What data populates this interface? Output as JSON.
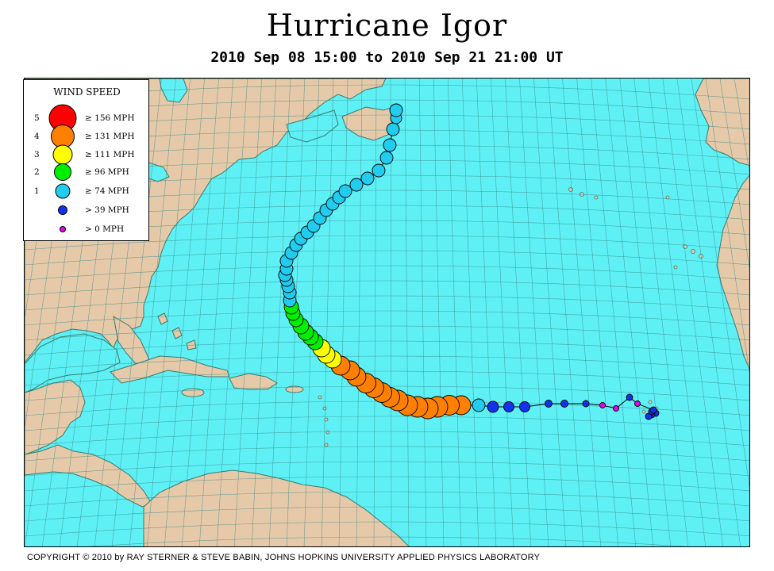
{
  "title": "Hurricane Igor",
  "subtitle": "2010 Sep 08 15:00 to 2010 Sep 21 21:00 UT",
  "legend": {
    "title": "WIND SPEED",
    "entries": [
      {
        "category": "5",
        "label": "≥ 156 MPH",
        "color": "#ff0000"
      },
      {
        "category": "4",
        "label": "≥ 131 MPH",
        "color": "#ff8000"
      },
      {
        "category": "3",
        "label": "≥ 111 MPH",
        "color": "#ffff00"
      },
      {
        "category": "2",
        "label": "≥ 96 MPH",
        "color": "#00ee00"
      },
      {
        "category": "1",
        "label": "≥ 74 MPH",
        "color": "#22ccee"
      },
      {
        "category": "",
        "label": "> 39 MPH",
        "color": "#1133ee"
      },
      {
        "category": "",
        "label": "> 0 MPH",
        "color": "#ee00ee"
      }
    ]
  },
  "colors": {
    "ocean": "#5ef0f5",
    "land": "#e6c9a8",
    "coast": "#3a7a6a",
    "grid": "#3c8c8c",
    "track": "#000000"
  },
  "copyright": "COPYRIGHT © 2010 by RAY STERNER & STEVE BABIN, JOHNS HOPKINS UNIVERSITY APPLIED PHYSICS LABORATORY"
}
